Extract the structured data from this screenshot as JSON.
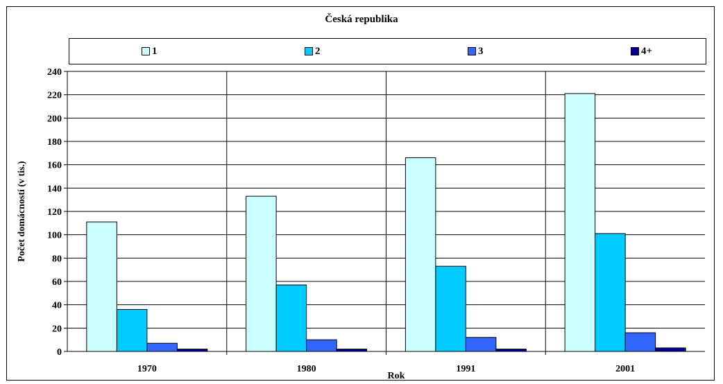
{
  "chart_data": {
    "type": "bar",
    "title": "Česká republika",
    "xlabel": "Rok",
    "ylabel": "Počet  domácností (v tis.)",
    "categories": [
      "1970",
      "1980",
      "1991",
      "2001"
    ],
    "ylim": [
      0,
      240
    ],
    "yticks": [
      0,
      20,
      40,
      60,
      80,
      100,
      120,
      140,
      160,
      180,
      200,
      220,
      240
    ],
    "grid": true,
    "legend_position": "top",
    "series": [
      {
        "name": "1",
        "color": "#ccffff",
        "values": [
          111,
          133,
          166,
          221
        ]
      },
      {
        "name": "2",
        "color": "#00ccff",
        "values": [
          36,
          57,
          73,
          101
        ]
      },
      {
        "name": "3",
        "color": "#3366ff",
        "values": [
          7,
          10,
          12,
          16
        ]
      },
      {
        "name": "4+",
        "color": "#000099",
        "values": [
          2,
          2,
          2,
          3
        ]
      }
    ]
  }
}
